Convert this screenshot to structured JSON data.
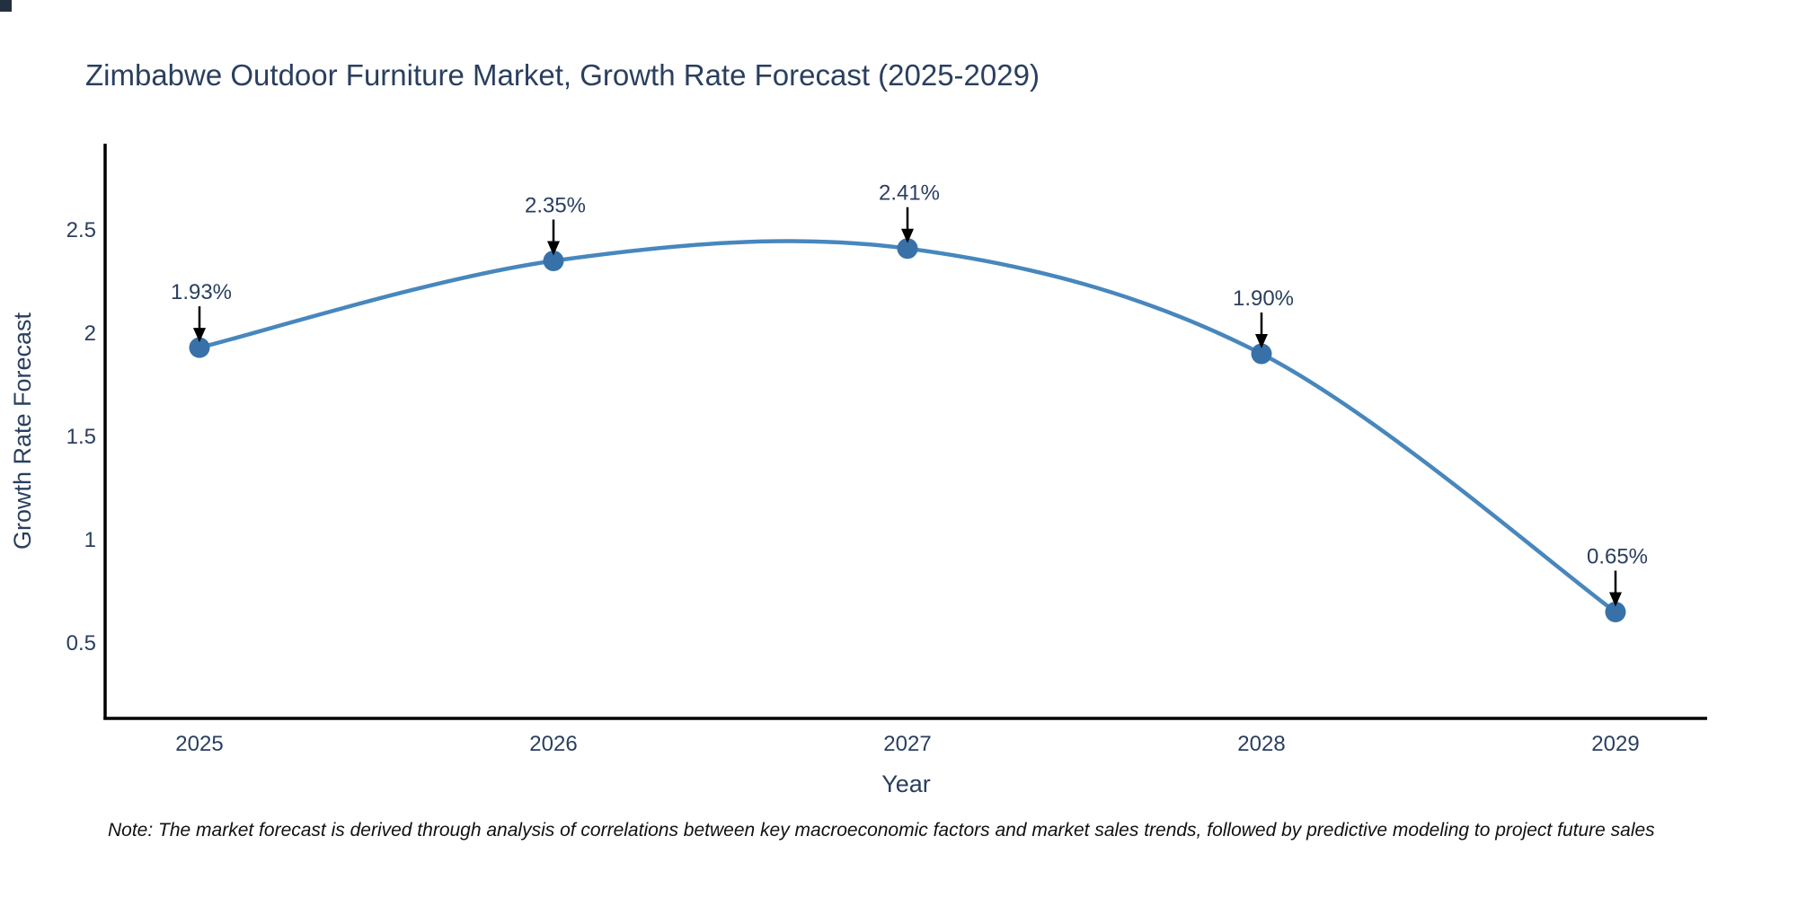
{
  "title": "Zimbabwe Outdoor Furniture Market, Growth Rate Forecast (2025-2029)",
  "note": "Note: The market forecast is derived through analysis of correlations between key macroeconomic factors and market sales trends, followed by predictive modeling to project future sales",
  "chart_data": {
    "type": "line",
    "title": "Zimbabwe Outdoor Furniture Market, Growth Rate Forecast (2025-2029)",
    "x": [
      "2025",
      "2026",
      "2027",
      "2028",
      "2029"
    ],
    "series": [
      {
        "name": "Growth Rate Forecast",
        "values": [
          1.93,
          2.35,
          2.41,
          1.9,
          0.65
        ]
      }
    ],
    "point_labels": [
      "1.93%",
      "2.35%",
      "2.41%",
      "1.90%",
      "0.65%"
    ],
    "xlabel": "Year",
    "ylabel": "Growth Rate Forecast",
    "yticks": [
      0.5,
      1,
      1.5,
      2,
      2.5
    ],
    "ylim": [
      0.13,
      2.92
    ],
    "line_shape": "spline",
    "grid": false,
    "legend": "none",
    "annotation_style": "arrow-down-to-point",
    "colors": {
      "line": "#4787bd",
      "marker": "#3871a8",
      "arrow": "#000000",
      "axis": "#000000",
      "text": "#2a3f5f",
      "note": "#111111"
    }
  }
}
